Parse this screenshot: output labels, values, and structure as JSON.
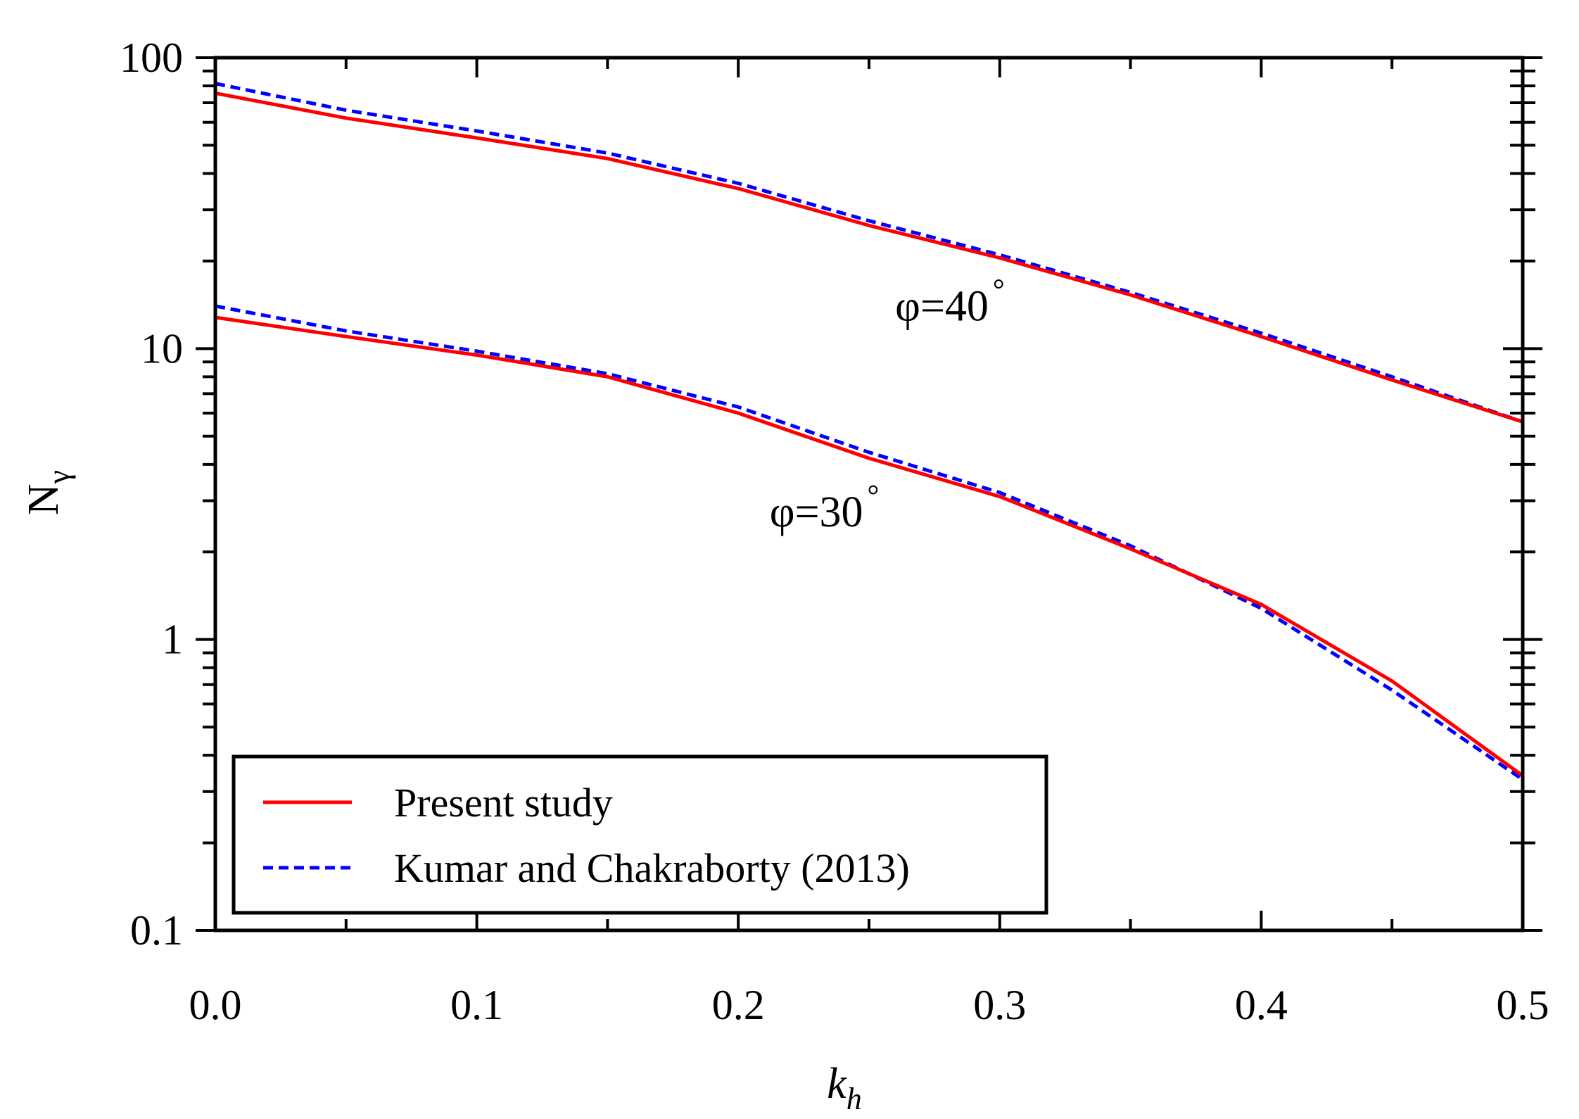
{
  "chart_data": {
    "type": "line",
    "title": "",
    "xlabel": "k",
    "xlabel_sub": "h",
    "ylabel": "N",
    "ylabel_sub": "γ",
    "xscale": "linear",
    "yscale": "log",
    "xlim": [
      0.0,
      0.5
    ],
    "ylim": [
      0.1,
      100
    ],
    "x_ticks": [
      {
        "value": 0.0,
        "label": "0.0"
      },
      {
        "value": 0.1,
        "label": "0.1"
      },
      {
        "value": 0.2,
        "label": "0.2"
      },
      {
        "value": 0.3,
        "label": "0.3"
      },
      {
        "value": 0.4,
        "label": "0.4"
      },
      {
        "value": 0.5,
        "label": "0.5"
      }
    ],
    "y_ticks": [
      {
        "value": 0.1,
        "label": "0.1"
      },
      {
        "value": 1,
        "label": "1"
      },
      {
        "value": 10,
        "label": "10"
      },
      {
        "value": 100,
        "label": "100"
      }
    ],
    "grid": false,
    "legend_position": "bottom-left",
    "series": [
      {
        "name": "Present study",
        "style": "solid",
        "color": "#ff0000",
        "curves": [
          {
            "phi": 40,
            "x": [
              0.0,
              0.05,
              0.1,
              0.15,
              0.2,
              0.25,
              0.3,
              0.35,
              0.4,
              0.45,
              0.5
            ],
            "y": [
              75.5,
              62,
              53,
              45,
              35.5,
              26.5,
              20.5,
              15.3,
              11.0,
              7.8,
              5.6
            ]
          },
          {
            "phi": 30,
            "x": [
              0.0,
              0.05,
              0.1,
              0.15,
              0.2,
              0.25,
              0.3,
              0.35,
              0.4,
              0.45,
              0.5
            ],
            "y": [
              12.8,
              11.0,
              9.5,
              8.0,
              6.0,
              4.2,
              3.1,
              2.05,
              1.32,
              0.72,
              0.34
            ]
          }
        ]
      },
      {
        "name": "Kumar and Chakraborty (2013)",
        "style": "dashed",
        "color": "#0000ff",
        "curves": [
          {
            "phi": 40,
            "x": [
              0.0,
              0.05,
              0.1,
              0.15,
              0.2,
              0.25,
              0.3,
              0.35,
              0.4,
              0.45,
              0.5
            ],
            "y": [
              81.5,
              66,
              56,
              47,
              37,
              27.5,
              21.0,
              15.6,
              11.3,
              8.0,
              5.6
            ]
          },
          {
            "phi": 30,
            "x": [
              0.0,
              0.05,
              0.1,
              0.15,
              0.2,
              0.25,
              0.3,
              0.35,
              0.4,
              0.45,
              0.5
            ],
            "y": [
              14.0,
              11.5,
              9.8,
              8.2,
              6.3,
              4.4,
              3.2,
              2.1,
              1.28,
              0.67,
              0.33
            ]
          }
        ]
      }
    ],
    "annotations": [
      {
        "text": "φ=40",
        "degree": "°",
        "x": 0.26,
        "y": 12.5
      },
      {
        "text": "φ=30",
        "degree": "°",
        "x": 0.212,
        "y": 2.45
      }
    ],
    "legend": [
      {
        "label": "Present study",
        "style": "solid",
        "color": "#ff0000"
      },
      {
        "label": "Kumar and Chakraborty (2013)",
        "style": "dashed",
        "color": "#0000ff"
      }
    ]
  }
}
